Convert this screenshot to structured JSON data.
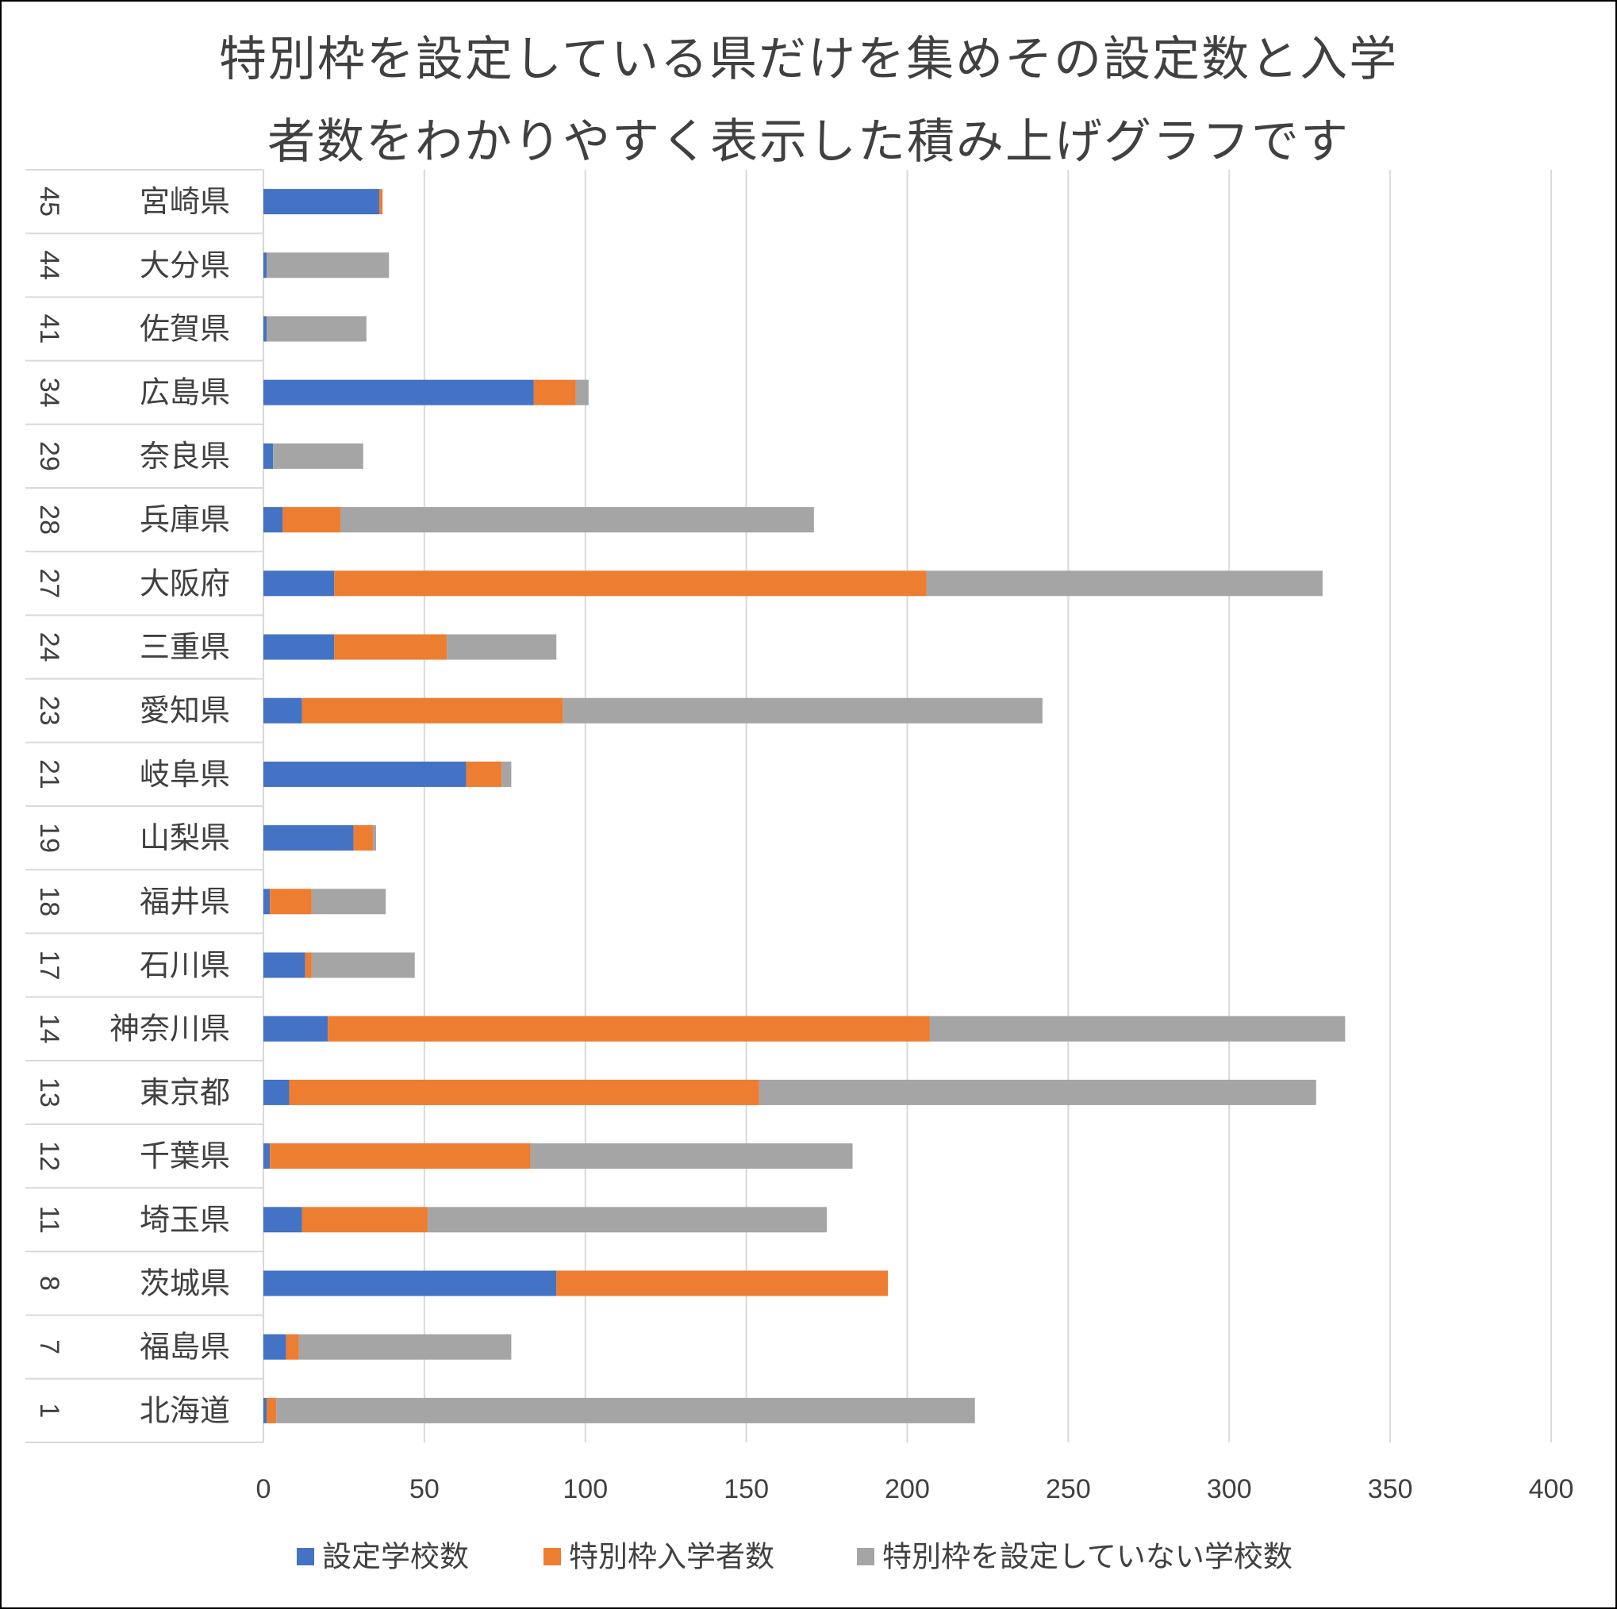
{
  "chart_data": {
    "type": "bar",
    "orientation": "horizontal",
    "stacked": true,
    "title_lines": [
      "特別枠を設定している県だけを集めその設定数と入学",
      "者数をわかりやすく表示した積み上げグラフです"
    ],
    "categories": [
      {
        "code": "45",
        "name": "宮崎県"
      },
      {
        "code": "44",
        "name": "大分県"
      },
      {
        "code": "41",
        "name": "佐賀県"
      },
      {
        "code": "34",
        "name": "広島県"
      },
      {
        "code": "29",
        "name": "奈良県"
      },
      {
        "code": "28",
        "name": "兵庫県"
      },
      {
        "code": "27",
        "name": "大阪府"
      },
      {
        "code": "24",
        "name": "三重県"
      },
      {
        "code": "23",
        "name": "愛知県"
      },
      {
        "code": "21",
        "name": "岐阜県"
      },
      {
        "code": "19",
        "name": "山梨県"
      },
      {
        "code": "18",
        "name": "福井県"
      },
      {
        "code": "17",
        "name": "石川県"
      },
      {
        "code": "14",
        "name": "神奈川県"
      },
      {
        "code": "13",
        "name": "東京都"
      },
      {
        "code": "12",
        "name": "千葉県"
      },
      {
        "code": "11",
        "name": "埼玉県"
      },
      {
        "code": "8",
        "name": "茨城県"
      },
      {
        "code": "7",
        "name": "福島県"
      },
      {
        "code": "1",
        "name": "北海道"
      }
    ],
    "series": [
      {
        "name": "設定学校数",
        "color": "#4472C4",
        "values": [
          36,
          1,
          1,
          84,
          3,
          6,
          22,
          22,
          12,
          63,
          28,
          2,
          13,
          20,
          8,
          2,
          12,
          91,
          7,
          1
        ]
      },
      {
        "name": "特別枠入学者数",
        "color": "#ED7D31",
        "values": [
          1,
          0,
          0,
          13,
          0,
          18,
          184,
          35,
          81,
          11,
          6,
          13,
          2,
          187,
          146,
          81,
          39,
          103,
          4,
          3
        ]
      },
      {
        "name": "特別枠を設定していない学校数",
        "color": "#A5A5A5",
        "values": [
          0,
          38,
          31,
          4,
          28,
          147,
          123,
          34,
          149,
          3,
          1,
          23,
          32,
          129,
          173,
          100,
          124,
          0,
          66,
          217
        ]
      }
    ],
    "xlim": [
      0,
      400
    ],
    "xticks": [
      "0",
      "50",
      "100",
      "150",
      "200",
      "250",
      "300",
      "350",
      "400"
    ],
    "grid": "vertical",
    "legend_position": "bottom"
  }
}
